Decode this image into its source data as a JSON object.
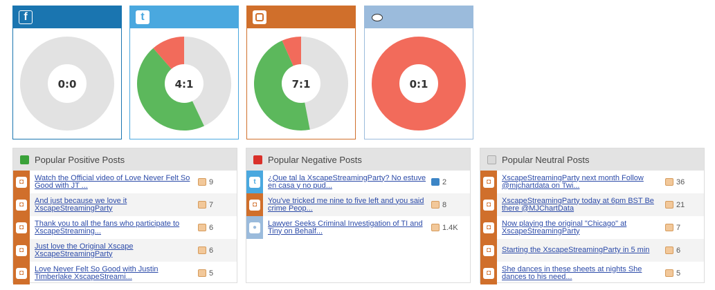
{
  "colors": {
    "facebook": "#1a75b0",
    "twitter": "#4aa8df",
    "instagram": "#d06f2b",
    "reddit": "#9bbbdc",
    "positive": "#5cb85c",
    "negative": "#f26b5b",
    "neutral": "#e2e2e2"
  },
  "cards": [
    {
      "source": "facebook",
      "icon": "facebook-icon",
      "ratio": "0:0",
      "positive": 0,
      "negative": 0
    },
    {
      "source": "twitter",
      "icon": "twitter-icon",
      "ratio": "4:1",
      "positive": 4,
      "negative": 1,
      "neutral_share": 0.43
    },
    {
      "source": "instagram",
      "icon": "instagram-icon",
      "ratio": "7:1",
      "positive": 7,
      "negative": 1,
      "neutral_share": 0.47
    },
    {
      "source": "reddit",
      "icon": "reddit-icon",
      "ratio": "0:1",
      "positive": 0,
      "negative": 1
    }
  ],
  "panels": {
    "positive": {
      "title": "Popular Positive Posts",
      "posts": [
        {
          "text": "Watch the Official video of Love Never Felt So Good with JT ...",
          "count": "9",
          "icon": "instagram-icon"
        },
        {
          "text": "And just because we love it XscapeStreamingParty",
          "count": "7",
          "icon": "instagram-icon"
        },
        {
          "text": "Thank you to all the fans who participate to XscapeStreaming...",
          "count": "6",
          "icon": "instagram-icon"
        },
        {
          "text": "Just love the Original Xscape XscapeStreamingParty",
          "count": "6",
          "icon": "instagram-icon"
        },
        {
          "text": "Love Never Felt So Good with Justin Timberlake XscapeStreami...",
          "count": "5",
          "icon": "instagram-icon"
        }
      ]
    },
    "negative": {
      "title": "Popular Negative Posts",
      "posts": [
        {
          "text": "¿Que tal la XscapeStreamingParty? No estuve en casa y no pud...",
          "count": "2",
          "icon": "twitter-icon",
          "stat": "share-icon"
        },
        {
          "text": "You've tricked me nine to five left and you said crime    Peop...",
          "count": "8",
          "icon": "instagram-icon",
          "stat": "thumbs-up-icon"
        },
        {
          "text": "Lawyer Seeks Criminal Investigation of TI and Tiny on Behalf...",
          "count": "1.4K",
          "icon": "reddit-icon",
          "stat": "thumbs-up-icon"
        }
      ]
    },
    "neutral": {
      "title": "Popular Neutral Posts",
      "posts": [
        {
          "text": "XscapeStreamingParty next month Follow @mjchartdata on Twi...",
          "count": "36",
          "icon": "instagram-icon"
        },
        {
          "text": "XscapeStreamingParty today at 6pm BST Be there @MJChartData",
          "count": "21",
          "icon": "instagram-icon"
        },
        {
          "text": "Now playing the original \"Chicago\" at XscapeStreamingParty",
          "count": "7",
          "icon": "instagram-icon"
        },
        {
          "text": "Starting the XscapeStreamingParty in 5 min",
          "count": "6",
          "icon": "instagram-icon"
        },
        {
          "text": "She dances in these sheets at nights She dances to his need...",
          "count": "5",
          "icon": "instagram-icon"
        }
      ]
    }
  }
}
